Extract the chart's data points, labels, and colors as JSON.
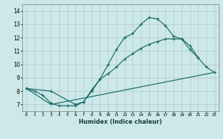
{
  "xlabel": "Humidex (Indice chaleur)",
  "bg_color": "#cce8e8",
  "grid_color": "#b0c8c8",
  "line_color": "#1a6b6b",
  "xlim": [
    -0.5,
    23.5
  ],
  "ylim": [
    6.5,
    14.5
  ],
  "xticks": [
    0,
    1,
    2,
    3,
    4,
    5,
    6,
    7,
    8,
    9,
    10,
    11,
    12,
    13,
    14,
    15,
    16,
    17,
    18,
    19,
    20,
    21,
    22,
    23
  ],
  "yticks": [
    7,
    8,
    9,
    10,
    11,
    12,
    13,
    14
  ],
  "line1_x": [
    0,
    1,
    2,
    3,
    4,
    5,
    6,
    7,
    8,
    9,
    10,
    11,
    12,
    13,
    14,
    15,
    16,
    17,
    18,
    19,
    20,
    21
  ],
  "line1_y": [
    8.2,
    8.0,
    7.7,
    7.1,
    6.9,
    6.9,
    6.9,
    7.2,
    8.1,
    8.9,
    10.0,
    11.1,
    12.0,
    12.3,
    13.0,
    13.5,
    13.4,
    12.9,
    12.1,
    11.9,
    11.4,
    10.5
  ],
  "line2_x": [
    0,
    3,
    6,
    7,
    8,
    9,
    10,
    11,
    12,
    13,
    14,
    15,
    16,
    17,
    18,
    19,
    20,
    21,
    22,
    23
  ],
  "line2_y": [
    8.2,
    8.0,
    7.0,
    7.2,
    8.0,
    8.9,
    9.3,
    9.8,
    10.4,
    10.8,
    11.2,
    11.5,
    11.7,
    11.9,
    11.9,
    11.9,
    11.1,
    10.5,
    9.8,
    9.4
  ],
  "line3_x": [
    0,
    3,
    23
  ],
  "line3_y": [
    8.2,
    7.0,
    9.4
  ]
}
